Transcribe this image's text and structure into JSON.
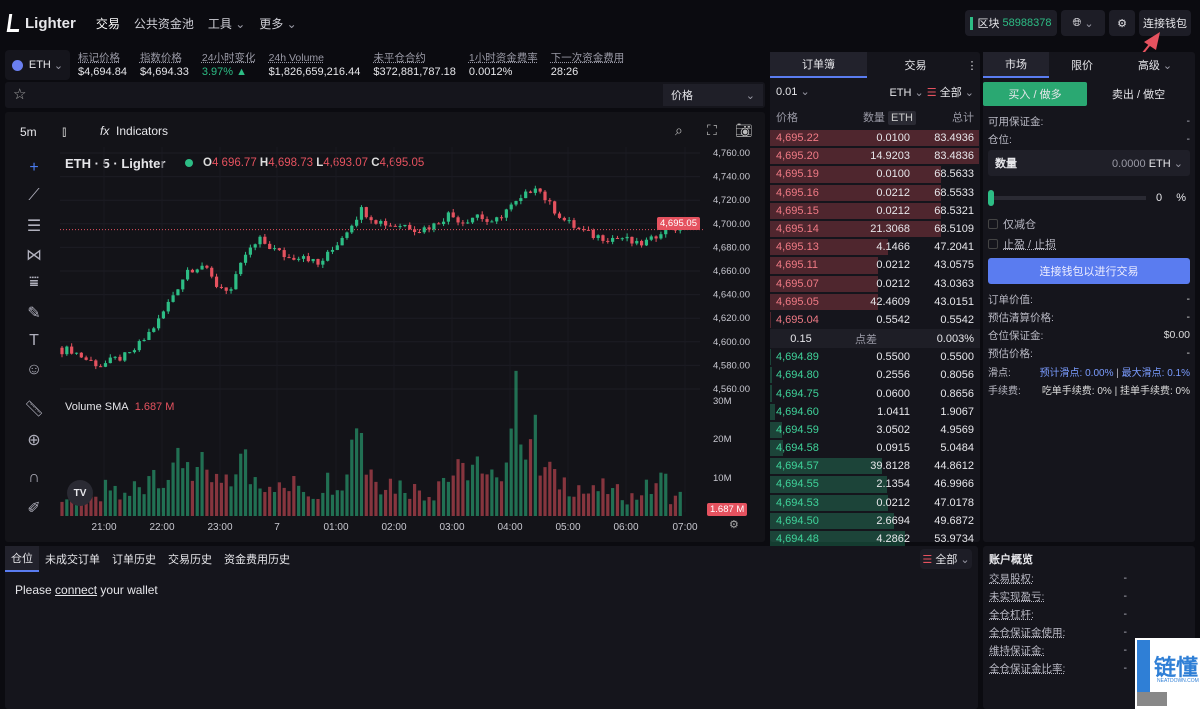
{
  "nav": {
    "brand": "Lighter",
    "items": [
      "交易",
      "公共资金池",
      "工具",
      "更多"
    ],
    "block_label": "区块",
    "block_number": "58988378",
    "connect_wallet": "连接钱包"
  },
  "ticker": {
    "symbol": "ETH",
    "stats": [
      {
        "label": "标记价格",
        "value": "$4,694.84"
      },
      {
        "label": "指数价格",
        "value": "$4,694.33"
      },
      {
        "label": "24小时变化",
        "value": "3.97% ▲",
        "color": "#2dbd85"
      },
      {
        "label": "24h Volume",
        "value": "$1,826,659,216.44"
      },
      {
        "label": "未平仓合约",
        "value": "$372,881,787.18"
      },
      {
        "label": "1小时资金费率",
        "value": "0.0012%"
      },
      {
        "label": "下一次资金费用",
        "value": "28:26"
      }
    ]
  },
  "price_select": "价格",
  "chart": {
    "interval": "5m",
    "indicators": "Indicators",
    "title": "ETH · 5 · Lighter",
    "ohlc": {
      "O": "4,696.77",
      "H": "4,698.73",
      "L": "4,693.07",
      "C": "4,695.05"
    },
    "last_price": "4,695.05",
    "volume_label": "Volume SMA",
    "volume_value": "1.687 M",
    "volume_last": "1.687 M"
  },
  "chart_data": {
    "type": "candlestick",
    "price_ticks": [
      "4,760.00",
      "4,740.00",
      "4,720.00",
      "4,700.00",
      "4,680.00",
      "4,660.00",
      "4,640.00",
      "4,620.00",
      "4,600.00",
      "4,580.00",
      "4,560.00"
    ],
    "ylim": [
      4560,
      4760
    ],
    "volume_ticks": [
      "30M",
      "20M",
      "10M"
    ],
    "x_ticks": [
      "21:00",
      "22:00",
      "23:00",
      "7",
      "01:00",
      "02:00",
      "03:00",
      "04:00",
      "05:00",
      "06:00",
      "07:00"
    ],
    "close_keypoints_15m": [
      4593,
      4585,
      4580,
      4585,
      4589,
      4602,
      4618,
      4640,
      4661,
      4665,
      4648,
      4644,
      4674,
      4686,
      4678,
      4671,
      4674,
      4665,
      4678,
      4695,
      4712,
      4703,
      4699,
      4699,
      4695,
      4699,
      4708,
      4702,
      4708,
      4699,
      4712,
      4720,
      4733,
      4716,
      4703,
      4695,
      4690,
      4688,
      4688,
      4682,
      4686,
      4699,
      4695
    ],
    "volume_keypoints_M": [
      5,
      6,
      4,
      7,
      5,
      8,
      12,
      10,
      15,
      12,
      9,
      8,
      14,
      10,
      9,
      7,
      8,
      6,
      9,
      10,
      25,
      12,
      9,
      8,
      7,
      6,
      10,
      11,
      13,
      9,
      14,
      28,
      20,
      12,
      9,
      8,
      6,
      7,
      6,
      5,
      7,
      9,
      5
    ]
  },
  "orderbook": {
    "tabs": [
      "订单簿",
      "交易"
    ],
    "tick": "0.01",
    "unit": "ETH",
    "filter": "全部",
    "headers": [
      "价格",
      "数量",
      "ETH",
      "总计"
    ],
    "asks": [
      [
        "4,695.22",
        "0.0100",
        "83.4936"
      ],
      [
        "4,695.20",
        "14.9203",
        "83.4836"
      ],
      [
        "4,695.19",
        "0.0100",
        "68.5633"
      ],
      [
        "4,695.16",
        "0.0212",
        "68.5533"
      ],
      [
        "4,695.15",
        "0.0212",
        "68.5321"
      ],
      [
        "4,695.14",
        "21.3068",
        "68.5109"
      ],
      [
        "4,695.13",
        "4.1466",
        "47.2041"
      ],
      [
        "4,695.11",
        "0.0212",
        "43.0575"
      ],
      [
        "4,695.07",
        "0.0212",
        "43.0363"
      ],
      [
        "4,695.05",
        "42.4609",
        "43.0151"
      ],
      [
        "4,695.04",
        "0.5542",
        "0.5542"
      ]
    ],
    "spread": {
      "value": "0.15",
      "label": "点差",
      "pct": "0.003%"
    },
    "bids": [
      [
        "4,694.89",
        "0.5500",
        "0.5500"
      ],
      [
        "4,694.80",
        "0.2556",
        "0.8056"
      ],
      [
        "4,694.75",
        "0.0600",
        "0.8656"
      ],
      [
        "4,694.60",
        "1.0411",
        "1.9067"
      ],
      [
        "4,694.59",
        "3.0502",
        "4.9569"
      ],
      [
        "4,694.58",
        "0.0915",
        "5.0484"
      ],
      [
        "4,694.57",
        "39.8128",
        "44.8612"
      ],
      [
        "4,694.55",
        "2.1354",
        "46.9966"
      ],
      [
        "4,694.53",
        "0.0212",
        "47.0178"
      ],
      [
        "4,694.50",
        "2.6694",
        "49.6872"
      ],
      [
        "4,694.48",
        "4.2862",
        "53.9734"
      ]
    ]
  },
  "order": {
    "tabs": [
      "市场",
      "限价",
      "高级"
    ],
    "buy": "买入 / 做多",
    "sell": "卖出 / 做空",
    "available": "可用保证金:",
    "position": "仓位:",
    "dash": "-",
    "qty_label": "数量",
    "qty_value": "0.0000",
    "qty_unit": "ETH",
    "pct": "0",
    "pct_sign": "%",
    "reduce_only": "仅减仓",
    "tpsl": "止盈 / 止损",
    "connect": "连接钱包以进行交易",
    "rows": [
      [
        "订单价值:",
        "-"
      ],
      [
        "预估清算价格:",
        "-"
      ],
      [
        "仓位保证金:",
        "$0.00"
      ],
      [
        "预估价格:",
        "-"
      ]
    ],
    "slippage_label": "滑点:",
    "slippage_est": "预计滑点: 0.00%",
    "slippage_max": "最大滑点: 0.1%",
    "fee_label": "手续费:",
    "fee_taker": "吃单手续费: 0%",
    "fee_maker": "挂单手续费: 0%"
  },
  "bottom": {
    "tabs": [
      "仓位",
      "未成交订单",
      "订单历史",
      "交易历史",
      "资金费用历史"
    ],
    "filter": "全部",
    "msg_pre": "Please ",
    "msg_link": "connect",
    "msg_post": " your wallet"
  },
  "account": {
    "title": "账户概览",
    "rows": [
      [
        "交易股权:",
        "-"
      ],
      [
        "未实现盈亏:",
        "-"
      ],
      [
        "全仓杠杆:",
        "-"
      ],
      [
        "全仓保证金使用:",
        "-"
      ],
      [
        "维持保证金:",
        "-"
      ],
      [
        "全仓保证金比率:",
        "-"
      ]
    ]
  },
  "watermark": {
    "text": "链懂",
    "sub": "NEATDOWN.COM"
  },
  "colors": {
    "up": "#2dbd85",
    "down": "#e5525f",
    "accent": "#5a7cf0"
  }
}
